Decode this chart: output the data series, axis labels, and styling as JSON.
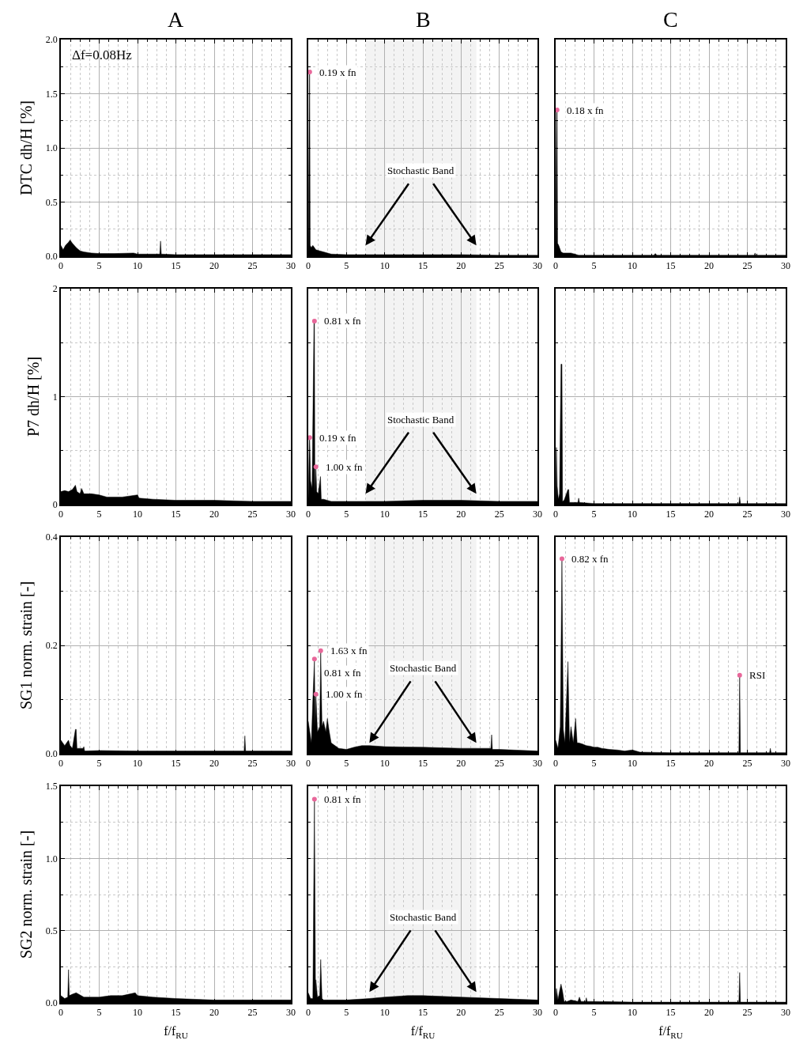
{
  "chart_data": [
    {
      "type": "area",
      "title": "A",
      "ylabel": "DTC dh/H [%]",
      "xlim": [
        0,
        30
      ],
      "xticks": [
        0,
        5,
        10,
        15,
        20,
        25,
        30
      ],
      "ylim": [
        0,
        2
      ],
      "yticks": [
        {
          "value": 0,
          "label": "0.0"
        },
        {
          "value": 0.5,
          "label": "0.5"
        },
        {
          "value": 1,
          "label": "1.0"
        },
        {
          "value": 1.5,
          "label": "1.5"
        },
        {
          "value": 2,
          "label": "2.0"
        }
      ],
      "grid": true,
      "annotations": [
        "Δf=0.08Hz"
      ],
      "series": [
        {
          "color": "#000000",
          "x": [
            0,
            0.3,
            0.6,
            1,
            1.2,
            1.5,
            2,
            2.5,
            3,
            4,
            5,
            7,
            9.5,
            10,
            12.9,
            13,
            13.1,
            15,
            20,
            25,
            30
          ],
          "values": [
            0.1,
            0.06,
            0.1,
            0.13,
            0.15,
            0.12,
            0.08,
            0.05,
            0.04,
            0.03,
            0.025,
            0.025,
            0.03,
            0.02,
            0.02,
            0.14,
            0.02,
            0.015,
            0.015,
            0.015,
            0.015
          ]
        }
      ]
    },
    {
      "type": "area",
      "title": "B",
      "xlim": [
        0,
        30
      ],
      "xticks": [
        0,
        5,
        10,
        15,
        20,
        25,
        30
      ],
      "ylim": [
        0,
        2
      ],
      "yticks": [
        {
          "value": 0,
          "label": null
        },
        {
          "value": 0.5,
          "label": null
        },
        {
          "value": 1,
          "label": null
        },
        {
          "value": 1.5,
          "label": null
        },
        {
          "value": 2,
          "label": null
        }
      ],
      "grid": true,
      "tick_labels": "x",
      "annotations": [
        {
          "text": "0.19 x fn",
          "x": 0.19,
          "y": 1.7
        }
      ],
      "bands": [
        {
          "axis": "x",
          "from": 7.5,
          "to": 22,
          "label": "Stochastic Band",
          "color": "#f3f3f3"
        }
      ],
      "series": [
        {
          "color": "#000000",
          "x": [
            0,
            0.15,
            0.19,
            0.25,
            0.4,
            0.6,
            1,
            1.5,
            2,
            3,
            5,
            10,
            15,
            20,
            25,
            30
          ],
          "values": [
            0.02,
            1.7,
            1.7,
            0.1,
            0.08,
            0.1,
            0.06,
            0.05,
            0.04,
            0.02,
            0.015,
            0.015,
            0.015,
            0.015,
            0.01,
            0.01
          ]
        }
      ]
    },
    {
      "type": "area",
      "title": "C",
      "xlim": [
        0,
        30
      ],
      "xticks": [
        0,
        5,
        10,
        15,
        20,
        25,
        30
      ],
      "ylim": [
        0,
        2
      ],
      "yticks": [
        {
          "value": 0,
          "label": null
        },
        {
          "value": 0.5,
          "label": null
        },
        {
          "value": 1,
          "label": null
        },
        {
          "value": 1.5,
          "label": null
        },
        {
          "value": 2,
          "label": null
        }
      ],
      "grid": true,
      "tick_labels": "x",
      "annotations": [
        {
          "text": "0.18 x fn",
          "x": 0.18,
          "y": 1.35
        }
      ],
      "series": [
        {
          "color": "#000000",
          "x": [
            0,
            0.12,
            0.18,
            0.25,
            0.4,
            0.7,
            1,
            2,
            3,
            5,
            10,
            12.8,
            13,
            13.2,
            15,
            20,
            25.9,
            26,
            26.1,
            30
          ],
          "values": [
            0.02,
            1.35,
            1.35,
            0.12,
            0.1,
            0.04,
            0.03,
            0.03,
            0.01,
            0.01,
            0.01,
            0.01,
            0.025,
            0.01,
            0.01,
            0.01,
            0.01,
            0.03,
            0.01,
            0.01
          ]
        }
      ]
    },
    {
      "type": "area",
      "ylabel": "P7 dh/H [%]",
      "xlim": [
        0,
        30
      ],
      "xticks": [
        0,
        5,
        10,
        15,
        20,
        25,
        30
      ],
      "ylim": [
        0,
        2
      ],
      "yticks": [
        0,
        1,
        2
      ],
      "grid": true,
      "series": [
        {
          "color": "#000000",
          "x": [
            0,
            0.5,
            1,
            1.5,
            1.9,
            2,
            2.1,
            2.5,
            2.7,
            3,
            4,
            5,
            6,
            8,
            10,
            10.2,
            12,
            15,
            20,
            25,
            30
          ],
          "values": [
            0.12,
            0.13,
            0.12,
            0.14,
            0.18,
            0.15,
            0.12,
            0.1,
            0.15,
            0.1,
            0.1,
            0.09,
            0.07,
            0.07,
            0.09,
            0.06,
            0.05,
            0.04,
            0.04,
            0.03,
            0.03
          ]
        }
      ]
    },
    {
      "type": "area",
      "xlim": [
        0,
        30
      ],
      "xticks": [
        0,
        5,
        10,
        15,
        20,
        25,
        30
      ],
      "ylim": [
        0,
        2
      ],
      "yticks": [
        {
          "value": 0,
          "label": null
        },
        {
          "value": 1,
          "label": null
        },
        {
          "value": 2,
          "label": null
        }
      ],
      "grid": true,
      "tick_labels": "x",
      "annotations": [
        {
          "text": "0.81 x fn",
          "x": 0.81,
          "y": 1.7
        },
        {
          "text": "0.19 x fn",
          "x": 0.19,
          "y": 0.62
        },
        {
          "text": "1.00 x fn",
          "x": 1.0,
          "y": 0.35
        }
      ],
      "bands": [
        {
          "axis": "x",
          "from": 7.5,
          "to": 22,
          "label": "Stochastic Band",
          "color": "#f3f3f3"
        }
      ],
      "series": [
        {
          "color": "#000000",
          "x": [
            0,
            0.15,
            0.19,
            0.3,
            0.5,
            0.75,
            0.81,
            0.87,
            1.0,
            1.1,
            1.3,
            1.6,
            1.7,
            2,
            3,
            5,
            10,
            15,
            20,
            25,
            30
          ],
          "values": [
            0.05,
            0.62,
            0.62,
            0.22,
            0.15,
            1.7,
            1.7,
            0.1,
            0.35,
            0.12,
            0.1,
            0.26,
            0.05,
            0.05,
            0.03,
            0.03,
            0.03,
            0.04,
            0.04,
            0.03,
            0.03
          ]
        }
      ]
    },
    {
      "type": "area",
      "xlim": [
        0,
        30
      ],
      "xticks": [
        0,
        5,
        10,
        15,
        20,
        25,
        30
      ],
      "ylim": [
        0,
        2
      ],
      "yticks": [
        {
          "value": 0,
          "label": null
        },
        {
          "value": 1,
          "label": null
        },
        {
          "value": 2,
          "label": null
        }
      ],
      "grid": true,
      "tick_labels": "x",
      "series": [
        {
          "color": "#000000",
          "x": [
            0,
            0.1,
            0.2,
            0.35,
            0.5,
            0.7,
            0.82,
            0.9,
            1.1,
            1.6,
            1.7,
            1.8,
            2.9,
            3,
            3.1,
            5,
            10,
            15,
            20,
            23.9,
            24,
            24.1,
            30
          ],
          "values": [
            0.02,
            0.53,
            0.17,
            0.05,
            0.1,
            1.3,
            1.3,
            0.03,
            0.04,
            0.14,
            0.14,
            0.02,
            0.02,
            0.06,
            0.02,
            0.01,
            0.01,
            0.01,
            0.01,
            0.01,
            0.07,
            0.01,
            0.01
          ]
        }
      ]
    },
    {
      "type": "area",
      "ylabel": "SG1 norm. strain [-]",
      "xlim": [
        0,
        30
      ],
      "xticks": [
        0,
        5,
        10,
        15,
        20,
        25,
        30
      ],
      "ylim": [
        0,
        0.4
      ],
      "yticks": [
        {
          "value": 0,
          "label": "0.0"
        },
        0.2,
        0.4
      ],
      "grid": true,
      "series": [
        {
          "color": "#000000",
          "x": [
            0,
            0.5,
            1,
            1.2,
            1.5,
            1.9,
            2,
            2.1,
            2.9,
            3,
            3.1,
            5,
            10,
            15,
            20,
            23.9,
            24,
            24.1,
            30
          ],
          "values": [
            0.025,
            0.015,
            0.025,
            0.015,
            0.01,
            0.045,
            0.045,
            0.01,
            0.01,
            0.013,
            0.005,
            0.006,
            0.005,
            0.005,
            0.005,
            0.005,
            0.033,
            0.005,
            0.005
          ]
        }
      ]
    },
    {
      "type": "area",
      "xlim": [
        0,
        30
      ],
      "xticks": [
        0,
        5,
        10,
        15,
        20,
        25,
        30
      ],
      "ylim": [
        0,
        0.4
      ],
      "yticks": [
        {
          "value": 0,
          "label": null
        },
        {
          "value": 0.2,
          "label": null
        },
        {
          "value": 0.4,
          "label": null
        }
      ],
      "grid": true,
      "tick_labels": "x",
      "annotations": [
        {
          "text": "1.63 x fn",
          "x": 1.63,
          "y": 0.19
        },
        {
          "text": "0.81 x fn",
          "x": 0.81,
          "y": 0.175
        },
        {
          "text": "1.00 x fn",
          "x": 1.0,
          "y": 0.11
        }
      ],
      "bands": [
        {
          "axis": "x",
          "from": 8,
          "to": 22,
          "label": "Stochastic Band",
          "color": "#f3f3f3"
        }
      ],
      "series": [
        {
          "color": "#000000",
          "x": [
            0,
            0.2,
            0.4,
            0.6,
            0.81,
            0.9,
            1.0,
            1.2,
            1.5,
            1.63,
            1.8,
            2.0,
            2.3,
            2.5,
            2.7,
            3,
            3.5,
            4,
            5,
            6,
            7,
            8,
            10,
            15,
            20,
            23.9,
            24,
            24.1,
            25,
            30
          ],
          "values": [
            0.06,
            0.04,
            0.02,
            0.1,
            0.175,
            0.05,
            0.11,
            0.04,
            0.05,
            0.19,
            0.05,
            0.06,
            0.04,
            0.065,
            0.045,
            0.02,
            0.015,
            0.01,
            0.008,
            0.012,
            0.015,
            0.015,
            0.013,
            0.012,
            0.01,
            0.01,
            0.035,
            0.008,
            0.008,
            0.005
          ]
        }
      ]
    },
    {
      "type": "area",
      "xlim": [
        0,
        30
      ],
      "xticks": [
        0,
        5,
        10,
        15,
        20,
        25,
        30
      ],
      "ylim": [
        0,
        0.4
      ],
      "yticks": [
        {
          "value": 0,
          "label": null
        },
        {
          "value": 0.2,
          "label": null
        },
        {
          "value": 0.4,
          "label": null
        }
      ],
      "grid": true,
      "tick_labels": "x",
      "annotations": [
        {
          "text": "0.82 x fn",
          "x": 0.82,
          "y": 0.36
        },
        {
          "text": "RSI",
          "x": 24,
          "y": 0.145
        }
      ],
      "series": [
        {
          "color": "#000000",
          "x": [
            0,
            0.3,
            0.6,
            0.82,
            1.0,
            1.2,
            1.6,
            1.8,
            2.0,
            2.3,
            2.6,
            2.8,
            3,
            3.5,
            4,
            4.5,
            5,
            5.5,
            6,
            7,
            8,
            9,
            10,
            11,
            15,
            20,
            23.9,
            24,
            24.1,
            25,
            27.9,
            28,
            28.1,
            30
          ],
          "values": [
            0.025,
            0.01,
            0.05,
            0.36,
            0.045,
            0.02,
            0.17,
            0.02,
            0.05,
            0.02,
            0.065,
            0.02,
            0.02,
            0.018,
            0.015,
            0.014,
            0.012,
            0.012,
            0.01,
            0.008,
            0.007,
            0.005,
            0.007,
            0.003,
            0.002,
            0.002,
            0.002,
            0.145,
            0.002,
            0.002,
            0.002,
            0.01,
            0.002,
            0.002
          ]
        }
      ]
    },
    {
      "type": "area",
      "ylabel": "SG2 norm. strain [-]",
      "xlabel": "f/f$_{RU}$",
      "xlim": [
        0,
        30
      ],
      "xticks": [
        0,
        5,
        10,
        15,
        20,
        25,
        30
      ],
      "ylim": [
        0,
        1.5
      ],
      "yticks": [
        {
          "value": 0,
          "label": "0.0"
        },
        {
          "value": 0.5,
          "label": "0.5"
        },
        {
          "value": 1,
          "label": "1.0"
        },
        {
          "value": 1.5,
          "label": "1.5"
        }
      ],
      "grid": true,
      "series": [
        {
          "color": "#000000",
          "x": [
            0,
            0.5,
            0.9,
            1.0,
            1.1,
            1.5,
            2,
            3,
            5,
            6.5,
            8,
            9.7,
            10,
            12,
            15,
            20,
            25,
            30
          ],
          "values": [
            0.05,
            0.03,
            0.04,
            0.23,
            0.05,
            0.06,
            0.07,
            0.04,
            0.04,
            0.05,
            0.05,
            0.07,
            0.05,
            0.04,
            0.03,
            0.02,
            0.02,
            0.02
          ]
        }
      ]
    },
    {
      "type": "area",
      "xlabel": "f/f$_{RU}$",
      "xlim": [
        0,
        30
      ],
      "xticks": [
        0,
        5,
        10,
        15,
        20,
        25,
        30
      ],
      "ylim": [
        0,
        1.5
      ],
      "yticks": [
        {
          "value": 0,
          "label": null
        },
        {
          "value": 0.5,
          "label": null
        },
        {
          "value": 1,
          "label": null
        },
        {
          "value": 1.5,
          "label": null
        }
      ],
      "grid": true,
      "tick_labels": "x",
      "annotations": [
        {
          "text": "0.81 x fn",
          "x": 0.81,
          "y": 1.41
        }
      ],
      "bands": [
        {
          "axis": "x",
          "from": 8,
          "to": 22,
          "label": "Stochastic Band",
          "color": "#f3f3f3"
        }
      ],
      "series": [
        {
          "color": "#000000",
          "x": [
            0,
            0.3,
            0.6,
            0.81,
            0.95,
            1.0,
            1.2,
            1.5,
            1.63,
            1.8,
            2,
            3,
            5,
            8,
            10,
            13,
            15,
            20,
            25,
            30
          ],
          "values": [
            0.07,
            0.03,
            0.03,
            1.41,
            0.05,
            0.16,
            0.04,
            0.05,
            0.3,
            0.03,
            0.02,
            0.02,
            0.02,
            0.03,
            0.04,
            0.05,
            0.05,
            0.04,
            0.03,
            0.02
          ]
        }
      ]
    },
    {
      "type": "area",
      "xlabel": "f/f$_{RU}$",
      "xlim": [
        0,
        30
      ],
      "xticks": [
        0,
        5,
        10,
        15,
        20,
        25,
        30
      ],
      "ylim": [
        0,
        1.5
      ],
      "yticks": [
        {
          "value": 0,
          "label": null
        },
        {
          "value": 0.5,
          "label": null
        },
        {
          "value": 1,
          "label": null
        },
        {
          "value": 1.5,
          "label": null
        }
      ],
      "grid": true,
      "tick_labels": "x",
      "series": [
        {
          "color": "#000000",
          "x": [
            0,
            0.1,
            0.3,
            0.5,
            0.7,
            0.9,
            1.1,
            1.5,
            2,
            2.9,
            3.1,
            3.3,
            3.9,
            4,
            4.1,
            5,
            10,
            15,
            20,
            23.9,
            24,
            24.1,
            25,
            30
          ],
          "values": [
            0.02,
            0.1,
            0.02,
            0.08,
            0.13,
            0.08,
            0.01,
            0.01,
            0.02,
            0.01,
            0.04,
            0.01,
            0.01,
            0.035,
            0.01,
            0.01,
            0.005,
            0.005,
            0.005,
            0.005,
            0.21,
            0.005,
            0.005,
            0.005
          ]
        }
      ]
    }
  ]
}
